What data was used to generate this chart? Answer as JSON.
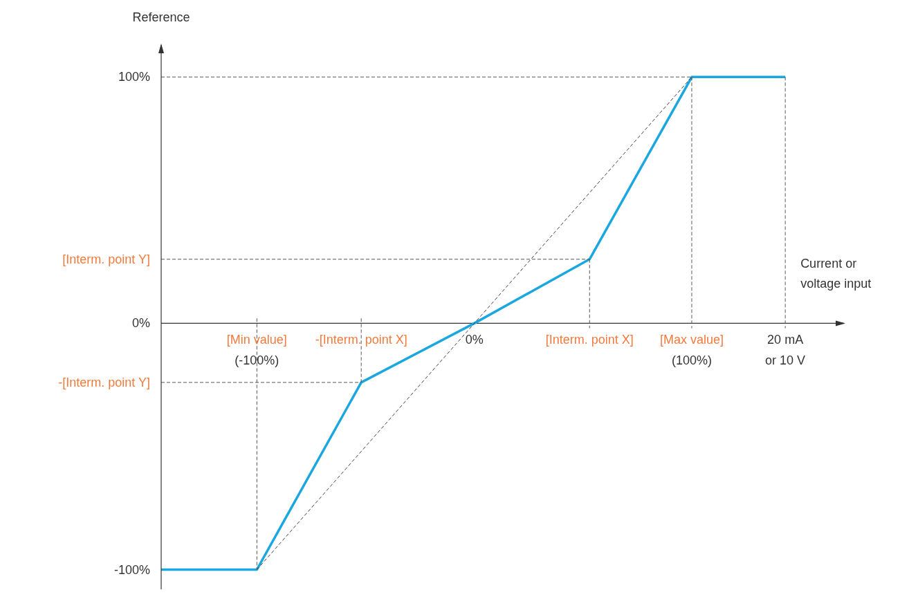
{
  "chart_data": {
    "type": "line",
    "ylabel": "Reference",
    "xlabel": "Current or voltage input",
    "xlim": [
      -144,
      170
    ],
    "ylim": [
      -108,
      113
    ],
    "xticks": [
      {
        "value": -100,
        "label": "[Min value]\n(-100%)"
      },
      {
        "value": -52,
        "label": "-[Interm. point X]"
      },
      {
        "value": 0,
        "label": "0%"
      },
      {
        "value": 53,
        "label": "[Interm. point X]"
      },
      {
        "value": 100,
        "label": "[Max value]\n(100%)"
      },
      {
        "value": 143,
        "label": "20 mA\nor 10 V"
      }
    ],
    "yticks": [
      {
        "value": 100,
        "label": "100%"
      },
      {
        "value": 26,
        "label": "[Interm. point Y]"
      },
      {
        "value": 0,
        "label": "0%"
      },
      {
        "value": -24,
        "label": "-[Interm. point Y]"
      },
      {
        "value": -100,
        "label": "-100%"
      }
    ],
    "marker": "none",
    "series": [
      {
        "line_style": "dashed",
        "color": "#444444",
        "x": [
          -100,
          100
        ],
        "values": [
          -100,
          100
        ]
      },
      {
        "line_style": "dashed",
        "color": "#555555",
        "x": [
          -144,
          100
        ],
        "values": [
          100,
          100
        ]
      },
      {
        "line_style": "dashed",
        "color": "#555555",
        "x": [
          -144,
          53
        ],
        "values": [
          26,
          26
        ]
      },
      {
        "line_style": "dashed",
        "color": "#555555",
        "x": [
          -144,
          -52
        ],
        "values": [
          -24,
          -24
        ]
      },
      {
        "line_style": "dashed",
        "color": "#555555",
        "x": [
          -100,
          -100
        ],
        "values": [
          2,
          -100
        ]
      },
      {
        "line_style": "dashed",
        "color": "#555555",
        "x": [
          -52,
          -52
        ],
        "values": [
          2,
          -24
        ]
      },
      {
        "line_style": "dashed",
        "color": "#555555",
        "x": [
          53,
          53
        ],
        "values": [
          26,
          -2
        ]
      },
      {
        "line_style": "dashed",
        "color": "#555555",
        "x": [
          100,
          100
        ],
        "values": [
          100,
          -2
        ]
      },
      {
        "line_style": "dashed",
        "color": "#555555",
        "x": [
          143,
          143
        ],
        "values": [
          100,
          -2
        ]
      },
      {
        "line_style": "solid",
        "color": "#1aa7df",
        "x": [
          -144,
          -100,
          -52,
          0,
          53,
          100,
          143
        ],
        "values": [
          -100,
          -100,
          -24,
          0,
          26,
          100,
          100
        ]
      }
    ]
  }
}
